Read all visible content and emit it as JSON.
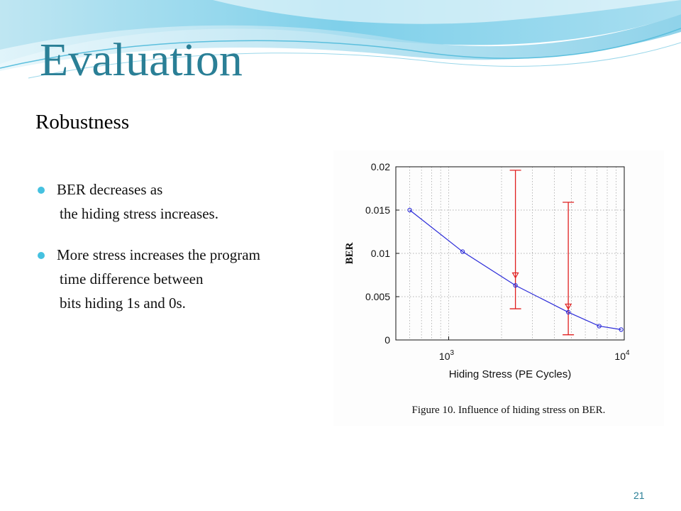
{
  "slide": {
    "title": "Evaluation",
    "heading": "Robustness",
    "page_number": "21",
    "accent_color": "#2a7f96",
    "bullet_color": "#45c1e0"
  },
  "bullets": [
    {
      "lines": [
        "BER decreases as",
        "the hiding stress increases."
      ]
    },
    {
      "lines": [
        "More stress increases the program",
        "time difference between",
        "bits hiding 1s and 0s."
      ]
    }
  ],
  "chart_data": {
    "type": "line",
    "caption": "Figure 10.   Influence of hiding stress on BER.",
    "xlabel": "Hiding Stress (PE Cycles)",
    "ylabel": "BER",
    "x_scale": "log",
    "xlim": [
      500,
      10000
    ],
    "ylim": [
      0,
      0.02
    ],
    "grid": true,
    "x_ticks": [
      {
        "value": 1000,
        "base": "10",
        "exp": "3"
      },
      {
        "value": 10000,
        "base": "10",
        "exp": "4"
      }
    ],
    "y_ticks": [
      {
        "value": 0,
        "label": "0"
      },
      {
        "value": 0.005,
        "label": "0.005"
      },
      {
        "value": 0.01,
        "label": "0.01"
      },
      {
        "value": 0.015,
        "label": "0.015"
      },
      {
        "value": 0.02,
        "label": "0.02"
      }
    ],
    "series": [
      {
        "color": "#2b2bd9",
        "x": [
          600,
          1200,
          2400,
          4800,
          7200,
          9600
        ],
        "y": [
          0.015,
          0.0102,
          0.0063,
          0.0032,
          0.0016,
          0.0012
        ]
      }
    ],
    "error_bars": [
      {
        "color": "#e02020",
        "x": 2400,
        "low": 0.0036,
        "high": 0.0196,
        "marker": 0.0075
      },
      {
        "color": "#e02020",
        "x": 4800,
        "low": 0.0006,
        "high": 0.0159,
        "marker": 0.0039
      }
    ]
  }
}
